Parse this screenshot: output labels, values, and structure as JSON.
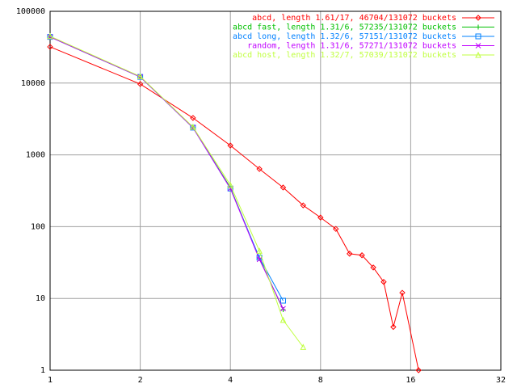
{
  "chart_data": {
    "type": "line",
    "xscale": "log",
    "yscale": "log",
    "grid": true,
    "legend": "top-right",
    "xlim": [
      1,
      32
    ],
    "xticks": [
      1,
      2,
      4,
      8,
      16,
      32
    ],
    "ylim": [
      1,
      100000
    ],
    "yticks": [
      1,
      10,
      100,
      1000,
      10000,
      100000
    ],
    "series": [
      {
        "name": "abcd, length 1.61/17, 46704/131072 buckets",
        "color": "#ff0000",
        "marker": "diamond",
        "x": [
          1,
          2,
          3,
          4,
          5,
          6,
          7,
          8,
          9,
          10,
          11,
          12,
          13,
          14,
          15,
          17
        ],
        "values": [
          32000,
          9700,
          3270,
          1350,
          637,
          351,
          198,
          134,
          93,
          42,
          40,
          27,
          17,
          4,
          12,
          1
        ]
      },
      {
        "name": "abcd fast, length 1.31/6, 57235/131072 buckets",
        "color": "#00c000",
        "marker": "plus",
        "x": [
          1,
          2,
          3,
          4,
          5,
          6
        ],
        "values": [
          44000,
          12200,
          2400,
          350,
          36,
          7
        ]
      },
      {
        "name": "abcd long, length 1.32/6, 57151/131072 buckets",
        "color": "#0080ff",
        "marker": "square",
        "x": [
          1,
          2,
          3,
          4,
          5,
          6
        ],
        "values": [
          44000,
          12200,
          2400,
          340,
          37,
          9.3
        ]
      },
      {
        "name": "random, length 1.31/6, 57271/131072 buckets",
        "color": "#c000ff",
        "marker": "cross",
        "x": [
          1,
          2,
          3,
          4,
          5,
          6
        ],
        "values": [
          44000,
          12200,
          2400,
          340,
          35,
          7.2
        ]
      },
      {
        "name": "abcd host, length 1.32/7, 57039/131072 buckets",
        "color": "#c0ff40",
        "marker": "triangle",
        "x": [
          1,
          2,
          3,
          4,
          5,
          6,
          7
        ],
        "values": [
          45000,
          12400,
          2450,
          380,
          46,
          5,
          2.1
        ]
      }
    ]
  }
}
